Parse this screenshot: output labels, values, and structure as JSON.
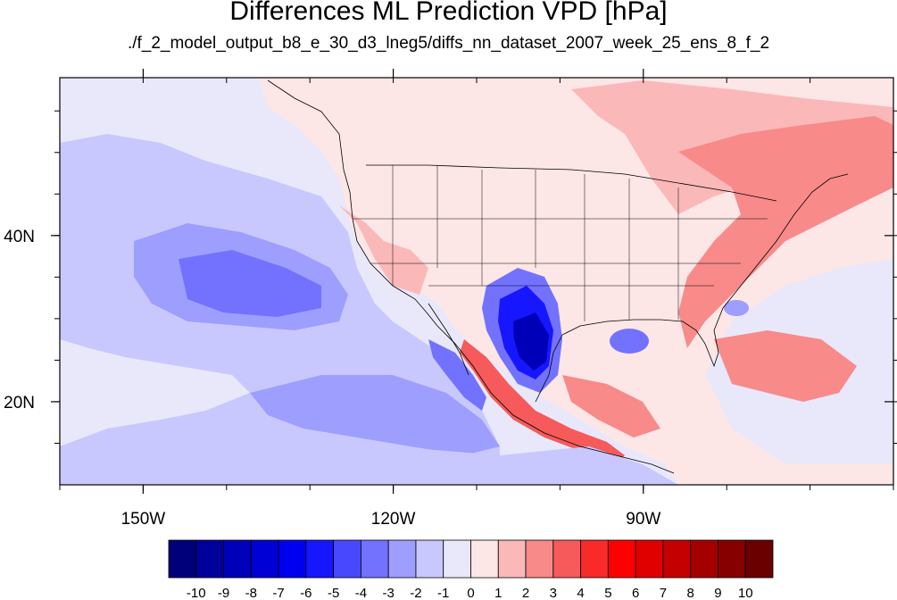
{
  "title": "Differences ML Prediction VPD [hPa]",
  "subtitle": "./f_2_model_output_b8_e_30_d3_lneg5/diffs_nn_dataset_2007_week_25_ens_8_f_2",
  "map": {
    "projection": "cylindrical equidistant",
    "lon_range": [
      -160,
      -60
    ],
    "lat_range": [
      10,
      59
    ],
    "x_ticks": [
      {
        "lon": -150,
        "label": "150W"
      },
      {
        "lon": -120,
        "label": "120W"
      },
      {
        "lon": -90,
        "label": "90W"
      }
    ],
    "y_ticks": [
      {
        "lat": 40,
        "label": "40N"
      },
      {
        "lat": 20,
        "label": "20N"
      }
    ]
  },
  "colorbar": {
    "labels": [
      "-10",
      "-9",
      "-8",
      "-7",
      "-6",
      "-5",
      "-4",
      "-3",
      "-2",
      "-1",
      "0",
      "1",
      "2",
      "3",
      "4",
      "5",
      "6",
      "7",
      "8",
      "9",
      "10"
    ],
    "colors": [
      "#00007a",
      "#00009a",
      "#0000b8",
      "#0000d4",
      "#0000f0",
      "#1616ff",
      "#4848ff",
      "#7272ff",
      "#9e9eff",
      "#c8c8ff",
      "#e8e8fa",
      "#fde6e6",
      "#fbb8b8",
      "#f88a8a",
      "#f65a5a",
      "#f82a2a",
      "#ff0000",
      "#e00000",
      "#c40000",
      "#a40000",
      "#860000",
      "#6a0000"
    ]
  }
}
